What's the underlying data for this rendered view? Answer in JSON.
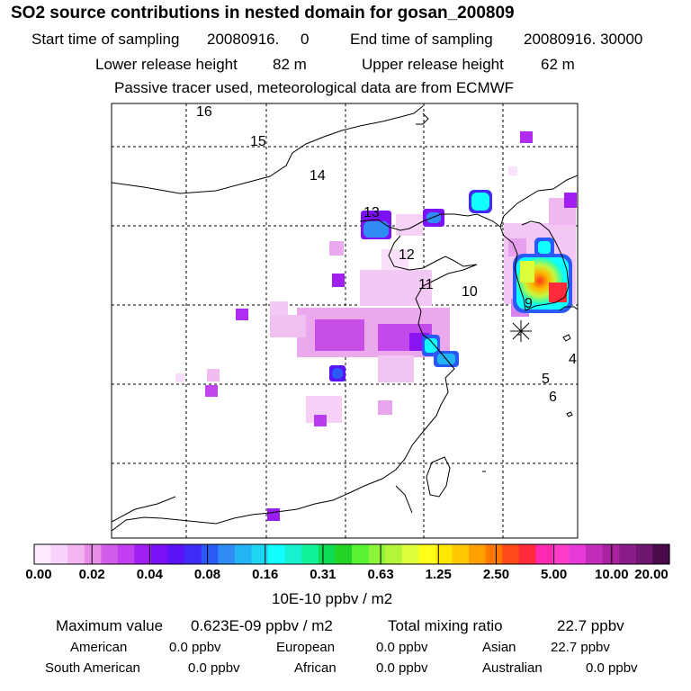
{
  "title": "SO2 source contributions in nested domain for gosan_200809",
  "sampling": {
    "start_label": "Start time of sampling",
    "start_value": "20080916.     0",
    "end_label": "End time of sampling",
    "end_value": "20080916. 30000"
  },
  "release": {
    "lower_label": "Lower release height",
    "lower_value": "82 m",
    "upper_label": "Upper release height",
    "upper_value": "62 m"
  },
  "tracer_note": "Passive tracer used, meteorological data are from ECMWF",
  "map": {
    "day_labels": [
      "16",
      "15",
      "14",
      "13",
      "12",
      "11",
      "10",
      "9",
      "4",
      "5",
      "6"
    ]
  },
  "colorbar": {
    "colors": [
      "#fdeafd",
      "#f9d2f9",
      "#f3b6f3",
      "#e98de9",
      "#d25ce9",
      "#c13ff0",
      "#a11ff2",
      "#7a12f5",
      "#5a12f6",
      "#3f2bf7",
      "#2a5af5",
      "#2f8cf5",
      "#22b4f5",
      "#1dd6f2",
      "#12ffff",
      "#18f0d2",
      "#12f29a",
      "#0fdc55",
      "#24d424",
      "#58f232",
      "#8cf53a",
      "#b4f53a",
      "#dcff3a",
      "#ffff1a",
      "#ffe800",
      "#ffc800",
      "#ffa000",
      "#ff7800",
      "#ff4a1a",
      "#ff2a3a",
      "#ff2ab0",
      "#ff3ccc",
      "#e83ad8",
      "#c22cba",
      "#a8229e",
      "#8a1c8a",
      "#6e166e",
      "#4a0a4a"
    ],
    "labels": [
      "0.00",
      "0.02",
      "0.04",
      "0.08",
      "0.16",
      "0.31",
      "0.63",
      "1.25",
      "2.50",
      "5.00",
      "10.00",
      "20.00"
    ],
    "units": "10E-10 ppbv / m2"
  },
  "stats": {
    "max_label": "Maximum value",
    "max_value": "0.623E-09 ppbv / m2",
    "total_label": "Total mixing ratio",
    "total_value": "22.7 ppbv",
    "regions": [
      {
        "name": "American",
        "value": "0.0 ppbv"
      },
      {
        "name": "European",
        "value": "0.0 ppbv"
      },
      {
        "name": "Asian",
        "value": "22.7 ppbv"
      },
      {
        "name": "South American",
        "value": "0.0 ppbv"
      },
      {
        "name": "African",
        "value": "0.0 ppbv"
      },
      {
        "name": "Australian",
        "value": "0.0 ppbv"
      }
    ]
  }
}
